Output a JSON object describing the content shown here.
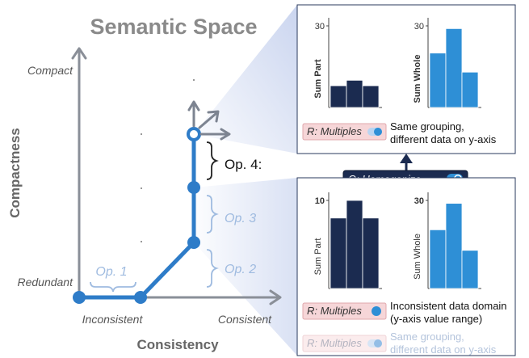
{
  "title": "Semantic Space",
  "axes": {
    "y_title": "Compactness",
    "x_title": "Consistency",
    "y_top": "Compact",
    "y_bottom": "Redundant",
    "x_left": "Inconsistent",
    "x_right": "Consistent"
  },
  "ops": {
    "op1": "Op. 1",
    "op2": "Op. 2",
    "op3": "Op. 3",
    "op4": "Op. 4:"
  },
  "colors": {
    "path_blue": "#2e7cc8",
    "bar_dark": "#1b2b50",
    "bar_light": "#2e8fd6",
    "light_label": "#9fbbe0",
    "axis_gray": "#8a8f98"
  },
  "top_panel": {
    "charts": [
      {
        "ylabel": "Sum Part",
        "tick": "30",
        "values": [
          8,
          10,
          8
        ],
        "ymax": 30,
        "color": "bar_dark"
      },
      {
        "ylabel": "Sum Whole",
        "tick": "30",
        "values": [
          20,
          29,
          13
        ],
        "ymax": 30,
        "color": "bar_light"
      }
    ],
    "rule_label": "R: Multiples",
    "description": [
      "Same grouping,",
      "different data on y-axis"
    ]
  },
  "op_badge": "O: Homogenize",
  "bottom_panel": {
    "charts": [
      {
        "ylabel": "Sum Part",
        "tick": "10",
        "values": [
          8,
          10,
          8
        ],
        "ymax": 10,
        "color": "bar_dark"
      },
      {
        "ylabel": "Sum Whole",
        "tick": "30",
        "values": [
          20,
          29,
          13
        ],
        "ymax": 30,
        "color": "bar_light"
      }
    ],
    "rules": [
      {
        "label": "R: Multiples",
        "text": [
          "Inconsistent data domain",
          "(y-axis value range)"
        ],
        "active": true
      },
      {
        "label": "R: Multiples",
        "text": [
          "Same grouping,",
          "different data on y-axis"
        ],
        "active": false
      }
    ]
  }
}
